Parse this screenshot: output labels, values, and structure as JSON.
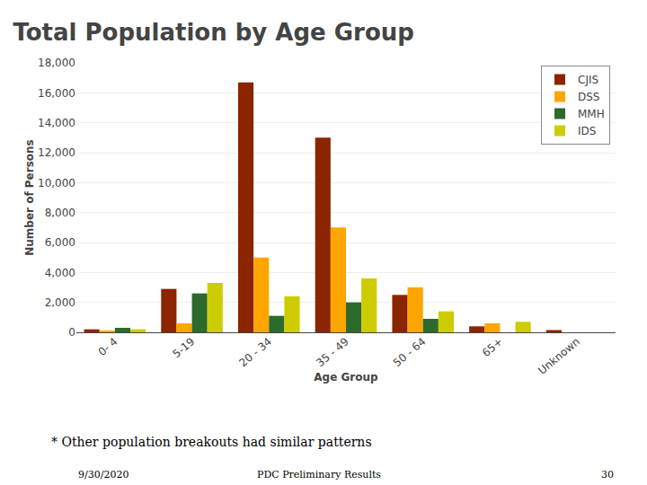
{
  "chart_data": {
    "type": "bar",
    "title": "Total Population by Age Group",
    "subtitle": "* Other population breakouts had similar patterns",
    "xlabel": "Age Group",
    "ylabel": "Number of Persons",
    "categories": [
      "0- 4",
      "5-19",
      "20 - 34",
      "35 - 49",
      "50 - 64",
      "65+",
      "Unknown"
    ],
    "series": [
      {
        "name": "CJIS",
        "color": "#8B2500",
        "values": [
          200,
          2900,
          16700,
          13000,
          2500,
          400,
          150
        ]
      },
      {
        "name": "DSS",
        "color": "#FFA500",
        "values": [
          100,
          600,
          5000,
          7000,
          3000,
          600,
          0
        ]
      },
      {
        "name": "MMH",
        "color": "#2d6a2d",
        "values": [
          300,
          2600,
          1100,
          2000,
          900,
          0,
          0
        ]
      },
      {
        "name": "IDS",
        "color": "#CCCC00",
        "values": [
          200,
          3300,
          2400,
          3600,
          1400,
          700,
          0
        ]
      }
    ],
    "ylim": [
      0,
      18000
    ],
    "yticks": [
      0,
      {
        "value": 2000,
        "label": "2,000"
      },
      {
        "value": 4000,
        "label": "4,000"
      },
      {
        "value": 6000,
        "label": "6,000"
      },
      {
        "value": 8000,
        "label": "8,000"
      },
      {
        "value": 10000,
        "label": "10,000"
      },
      {
        "value": 12000,
        "label": "12,000"
      },
      {
        "value": 14000,
        "label": "14,000"
      },
      {
        "value": 16000,
        "label": "16,000"
      },
      {
        "value": 18000,
        "label": "18,000"
      }
    ],
    "grid": true,
    "legend": "upper right",
    "annotations": [
      "9/30/2020",
      "PDC Preliminary Results",
      "30"
    ]
  }
}
